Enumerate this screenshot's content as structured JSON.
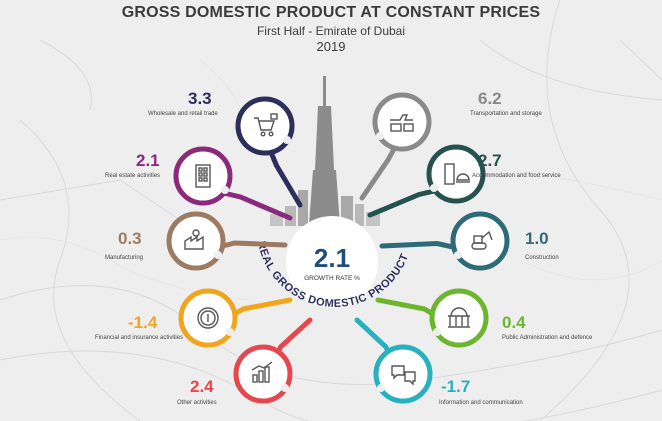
{
  "header": {
    "title": "GROSS DOMESTIC PRODUCT AT CONSTANT PRICES",
    "subtitle": "First Half - Emirate of Dubai",
    "year": "2019"
  },
  "center": {
    "value": "2.1",
    "label": "GROWTH RATE %",
    "arc_text": "REAL GROSS DOMESTIC PRODUCT"
  },
  "sectors": [
    {
      "id": "wholesale",
      "value": "3.3",
      "label": "Wholesale and retail trade",
      "color": "#2d2f5b",
      "icon": "shopping-cart-icon"
    },
    {
      "id": "real-estate",
      "value": "2.1",
      "label": "Real estate activities",
      "color": "#8a2a7d",
      "icon": "building-icon"
    },
    {
      "id": "manufacturing",
      "value": "0.3",
      "label": "Manufacturing",
      "color": "#9c7b62",
      "icon": "factory-icon"
    },
    {
      "id": "financial",
      "value": "-1.4",
      "label": "Financial and insurance activities",
      "color": "#f0a51e",
      "icon": "coin-icon"
    },
    {
      "id": "other",
      "value": "2.4",
      "label": "Other activities",
      "color": "#e4484e",
      "icon": "growth-chart-icon"
    },
    {
      "id": "transport",
      "value": "6.2",
      "label": "Transportation and storage",
      "color": "#8a8a8a",
      "icon": "transport-icon"
    },
    {
      "id": "accommodation",
      "value": "2.7",
      "label": "Accommodation and food service",
      "color": "#25524e",
      "icon": "hotel-icon"
    },
    {
      "id": "construction",
      "value": "1.0",
      "label": "Construction",
      "color": "#2e6b78",
      "icon": "excavator-icon"
    },
    {
      "id": "public-admin",
      "value": "0.4",
      "label": "Public Administration and defence",
      "color": "#6cb62f",
      "icon": "government-building-icon"
    },
    {
      "id": "information",
      "value": "-1.7",
      "label": "Information and communication",
      "color": "#27b0bf",
      "icon": "chat-bubbles-icon"
    }
  ]
}
